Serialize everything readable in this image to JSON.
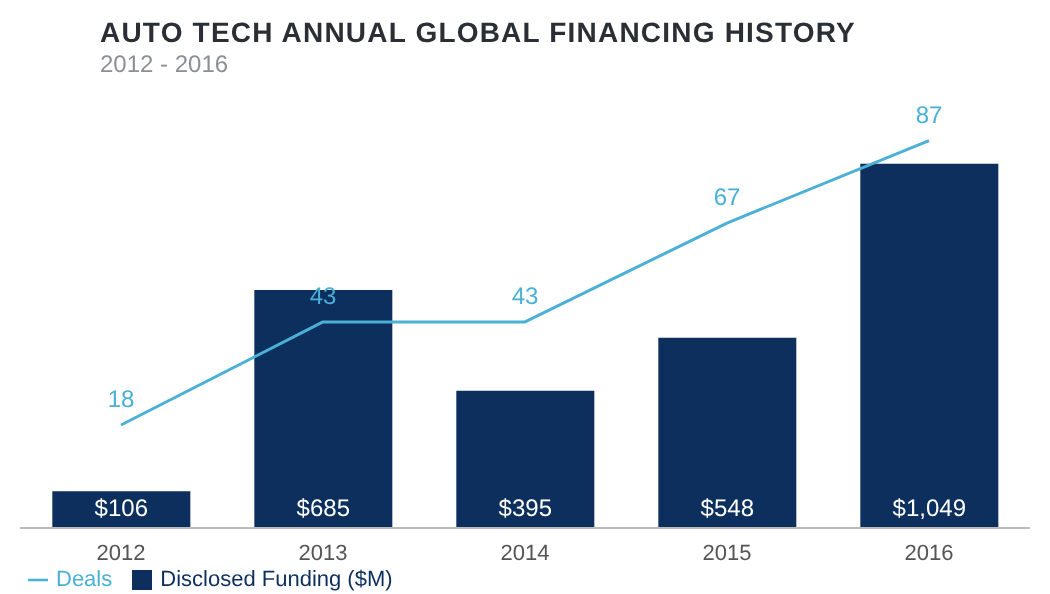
{
  "chart_data": {
    "type": "bar",
    "title": "AUTO TECH ANNUAL GLOBAL FINANCING HISTORY",
    "subtitle": "2012 - 2016",
    "categories": [
      "2012",
      "2013",
      "2014",
      "2015",
      "2016"
    ],
    "series": [
      {
        "name": "Disclosed Funding ($M)",
        "color": "#0c2f5e",
        "values": [
          106,
          685,
          395,
          548,
          1049
        ],
        "value_labels": [
          "$106",
          "$685",
          "$395",
          "$548",
          "$1,049"
        ]
      },
      {
        "name": "Deals",
        "type": "line",
        "axis": "y2",
        "color": "#4ab0d6",
        "values": [
          18,
          43,
          43,
          67,
          87
        ],
        "value_labels": [
          "18",
          "43",
          "43",
          "67",
          "87"
        ]
      }
    ],
    "tick_labels": "x",
    "legend": "bottom left",
    "marker": "none"
  }
}
